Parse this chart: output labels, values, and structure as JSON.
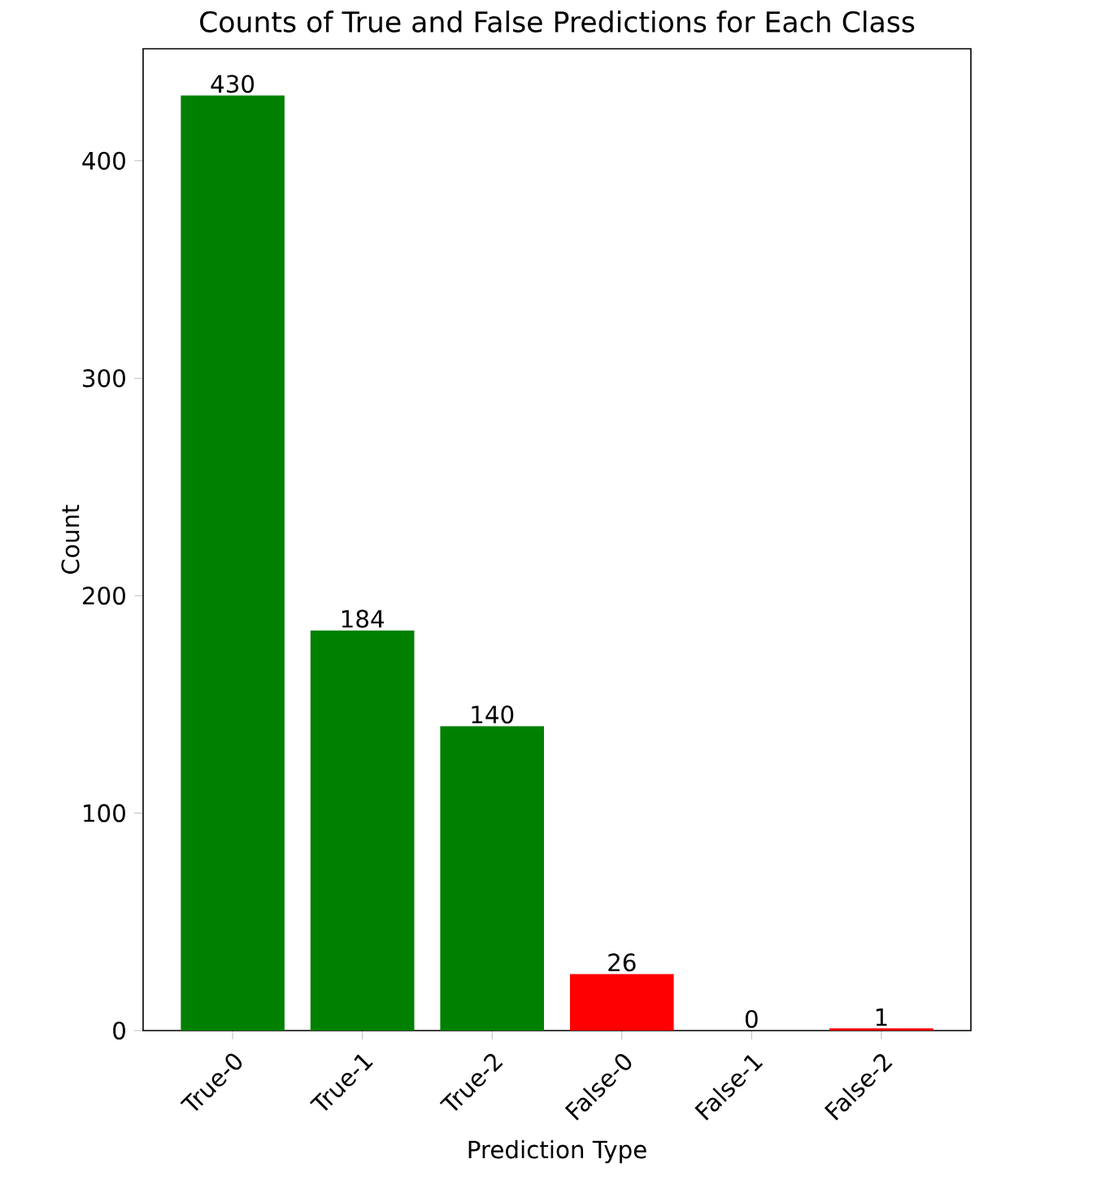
{
  "chart_data": {
    "type": "bar",
    "title": "Counts of True and False Predictions for Each Class",
    "xlabel": "Prediction Type",
    "ylabel": "Count",
    "categories": [
      "True-0",
      "True-1",
      "True-2",
      "False-0",
      "False-1",
      "False-2"
    ],
    "values": [
      430,
      184,
      140,
      26,
      0,
      1
    ],
    "colors": [
      "#008000",
      "#008000",
      "#008000",
      "#ff0000",
      "#ff0000",
      "#ff0000"
    ],
    "ylim": [
      0,
      451.5
    ],
    "yticks": [
      0,
      100,
      200,
      300,
      400
    ],
    "data_labels": true
  }
}
